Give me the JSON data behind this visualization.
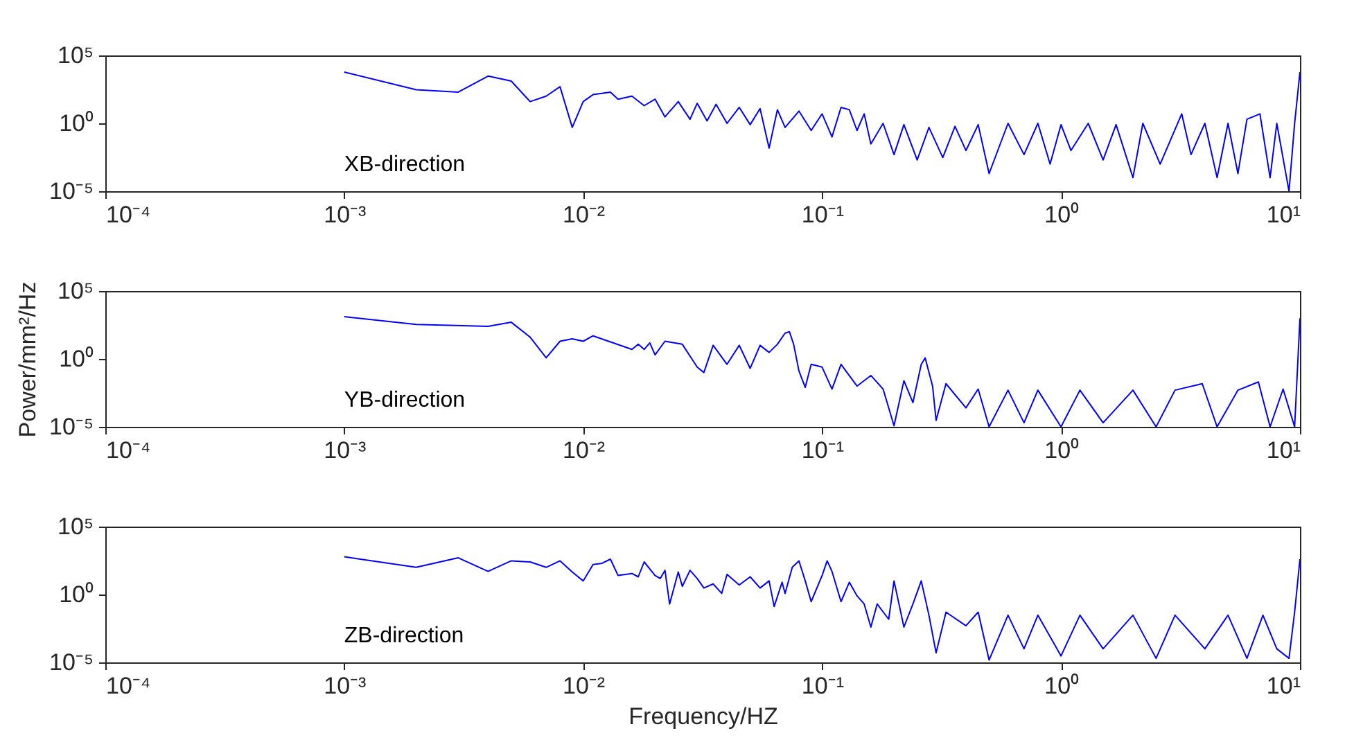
{
  "chart_data": [
    {
      "type": "line",
      "log": "xy",
      "annotations": [
        "XB-direction"
      ],
      "xlim": [
        0.0001,
        10
      ],
      "xticks": [
        {
          "value": 0.0001,
          "label": "10⁻⁴"
        },
        {
          "value": 0.001,
          "label": "10⁻³"
        },
        {
          "value": 0.01,
          "label": "10⁻²"
        },
        {
          "value": 0.1,
          "label": "10⁻¹"
        },
        {
          "value": 1,
          "label": "10⁰"
        },
        {
          "value": 10,
          "label": "10¹"
        }
      ],
      "ylim": [
        1e-05,
        100000
      ],
      "yticks": [
        {
          "value": 1e-05,
          "label": "10⁻⁵"
        },
        {
          "value": 1,
          "label": "10⁰"
        },
        {
          "value": 100000,
          "label": "10⁵"
        }
      ],
      "x": [
        0.001,
        0.002,
        0.003,
        0.004,
        0.005,
        0.006,
        0.007,
        0.008,
        0.009,
        0.01,
        0.011,
        0.013,
        0.014,
        0.016,
        0.018,
        0.02,
        0.022,
        0.025,
        0.028,
        0.03,
        0.033,
        0.036,
        0.04,
        0.045,
        0.05,
        0.055,
        0.06,
        0.065,
        0.07,
        0.08,
        0.09,
        0.1,
        0.11,
        0.12,
        0.13,
        0.14,
        0.15,
        0.16,
        0.18,
        0.2,
        0.22,
        0.25,
        0.28,
        0.32,
        0.36,
        0.4,
        0.45,
        0.5,
        0.6,
        0.7,
        0.8,
        0.9,
        1,
        1.1,
        1.3,
        1.5,
        1.7,
        2,
        2.2,
        2.6,
        3.2,
        3.5,
        4,
        4.5,
        5,
        5.5,
        6,
        6.8,
        7.5,
        8,
        9,
        9.5,
        10
      ],
      "series": [
        {
          "color": "#0000ff",
          "values": [
            6000,
            300,
            200,
            3000,
            1300,
            40,
            100,
            500,
            0.5,
            40,
            130,
            200,
            60,
            100,
            20,
            60,
            3,
            40,
            2,
            30,
            1.5,
            25,
            1,
            15,
            0.8,
            12,
            0.015,
            10,
            0.5,
            8,
            0.3,
            5,
            0.1,
            15,
            10,
            0.3,
            5,
            0.03,
            1,
            0.005,
            0.8,
            0.002,
            0.5,
            0.003,
            0.6,
            0.01,
            0.8,
            0.0002,
            1,
            0.005,
            1,
            0.001,
            0.8,
            0.01,
            1,
            0.002,
            0.8,
            0.0001,
            1,
            0.001,
            5,
            0.005,
            1,
            0.0001,
            1,
            0.0002,
            2,
            5,
            0.0001,
            1,
            1e-05,
            1,
            6000
          ]
        }
      ]
    },
    {
      "type": "line",
      "log": "xy",
      "ylabel": "Power/mm²/Hz",
      "annotations": [
        "YB-direction"
      ],
      "xlim": [
        0.0001,
        10
      ],
      "xticks": [
        {
          "value": 0.0001,
          "label": "10⁻⁴"
        },
        {
          "value": 0.001,
          "label": "10⁻³"
        },
        {
          "value": 0.01,
          "label": "10⁻²"
        },
        {
          "value": 0.1,
          "label": "10⁻¹"
        },
        {
          "value": 1,
          "label": "10⁰"
        },
        {
          "value": 10,
          "label": "10¹"
        }
      ],
      "ylim": [
        1e-05,
        100000
      ],
      "yticks": [
        {
          "value": 1e-05,
          "label": "10⁻⁵"
        },
        {
          "value": 1,
          "label": "10⁰"
        },
        {
          "value": 100000,
          "label": "10⁵"
        }
      ],
      "x": [
        0.001,
        0.002,
        0.004,
        0.005,
        0.006,
        0.007,
        0.008,
        0.009,
        0.01,
        0.011,
        0.016,
        0.017,
        0.018,
        0.019,
        0.02,
        0.022,
        0.026,
        0.03,
        0.032,
        0.035,
        0.04,
        0.045,
        0.05,
        0.055,
        0.06,
        0.065,
        0.07,
        0.073,
        0.076,
        0.08,
        0.085,
        0.09,
        0.1,
        0.11,
        0.12,
        0.14,
        0.16,
        0.18,
        0.2,
        0.22,
        0.24,
        0.26,
        0.27,
        0.29,
        0.3,
        0.33,
        0.4,
        0.45,
        0.5,
        0.6,
        0.7,
        0.8,
        1,
        1.2,
        1.5,
        2,
        2.5,
        3,
        3.9,
        4.5,
        5.5,
        6.7,
        7.5,
        8.5,
        9.5,
        10
      ],
      "series": [
        {
          "color": "#0000ff",
          "values": [
            1300,
            350,
            250,
            500,
            40,
            1.2,
            20,
            30,
            20,
            50,
            5,
            12,
            5,
            15,
            2,
            20,
            12,
            0.25,
            0.1,
            10,
            0.4,
            10,
            0.2,
            10,
            3,
            12,
            80,
            100,
            12,
            0.13,
            0.008,
            0.4,
            0.25,
            0.006,
            0.4,
            0.01,
            0.06,
            0.006,
            1.2e-05,
            0.025,
            0.0006,
            0.4,
            1.2,
            0.01,
            3e-05,
            0.015,
            0.00025,
            0.006,
            1e-05,
            0.005,
            2e-05,
            0.005,
            1e-05,
            0.005,
            2e-05,
            0.005,
            1e-05,
            0.005,
            0.015,
            1e-05,
            0.005,
            0.02,
            1e-05,
            0.006,
            1e-05,
            1000
          ]
        }
      ]
    },
    {
      "type": "line",
      "log": "xy",
      "xlabel": "Frequency/HZ",
      "annotations": [
        "ZB-direction"
      ],
      "xlim": [
        0.0001,
        10
      ],
      "xticks": [
        {
          "value": 0.0001,
          "label": "10⁻⁴"
        },
        {
          "value": 0.001,
          "label": "10⁻³"
        },
        {
          "value": 0.01,
          "label": "10⁻²"
        },
        {
          "value": 0.1,
          "label": "10⁻¹"
        },
        {
          "value": 1,
          "label": "10⁰"
        },
        {
          "value": 10,
          "label": "10¹"
        }
      ],
      "ylim": [
        1e-05,
        100000
      ],
      "yticks": [
        {
          "value": 1e-05,
          "label": "10⁻⁵"
        },
        {
          "value": 1,
          "label": "10⁰"
        },
        {
          "value": 100000,
          "label": "10⁵"
        }
      ],
      "x": [
        0.001,
        0.002,
        0.003,
        0.004,
        0.005,
        0.006,
        0.007,
        0.008,
        0.009,
        0.01,
        0.011,
        0.012,
        0.013,
        0.014,
        0.016,
        0.017,
        0.018,
        0.02,
        0.021,
        0.022,
        0.023,
        0.025,
        0.026,
        0.028,
        0.03,
        0.032,
        0.035,
        0.038,
        0.04,
        0.045,
        0.05,
        0.055,
        0.06,
        0.063,
        0.068,
        0.07,
        0.075,
        0.08,
        0.085,
        0.09,
        0.1,
        0.105,
        0.11,
        0.12,
        0.13,
        0.14,
        0.15,
        0.16,
        0.17,
        0.19,
        0.2,
        0.22,
        0.24,
        0.26,
        0.28,
        0.3,
        0.33,
        0.4,
        0.45,
        0.5,
        0.6,
        0.7,
        0.8,
        1,
        1.2,
        1.5,
        2,
        2.5,
        3,
        4,
        5,
        6,
        7,
        8,
        9,
        9.5,
        10
      ],
      "series": [
        {
          "color": "#0000ff",
          "values": [
            600,
            100,
            500,
            50,
            300,
            250,
            100,
            300,
            45,
            10,
            160,
            200,
            400,
            25,
            35,
            20,
            250,
            25,
            15,
            60,
            0.2,
            45,
            4,
            60,
            15,
            3,
            6,
            1.2,
            30,
            5,
            20,
            3,
            10,
            0.13,
            8,
            1.2,
            100,
            300,
            10,
            0.3,
            25,
            300,
            50,
            0.3,
            8,
            0.8,
            0.2,
            0.004,
            0.2,
            0.015,
            10,
            0.004,
            0.2,
            10,
            0.03,
            5e-05,
            0.05,
            0.005,
            0.05,
            1.5e-05,
            0.03,
            0.0001,
            0.03,
            3e-05,
            0.03,
            0.0001,
            0.03,
            2e-05,
            0.03,
            0.0001,
            0.03,
            2e-05,
            0.03,
            0.0001,
            2e-05,
            0.05,
            400
          ]
        }
      ]
    }
  ]
}
